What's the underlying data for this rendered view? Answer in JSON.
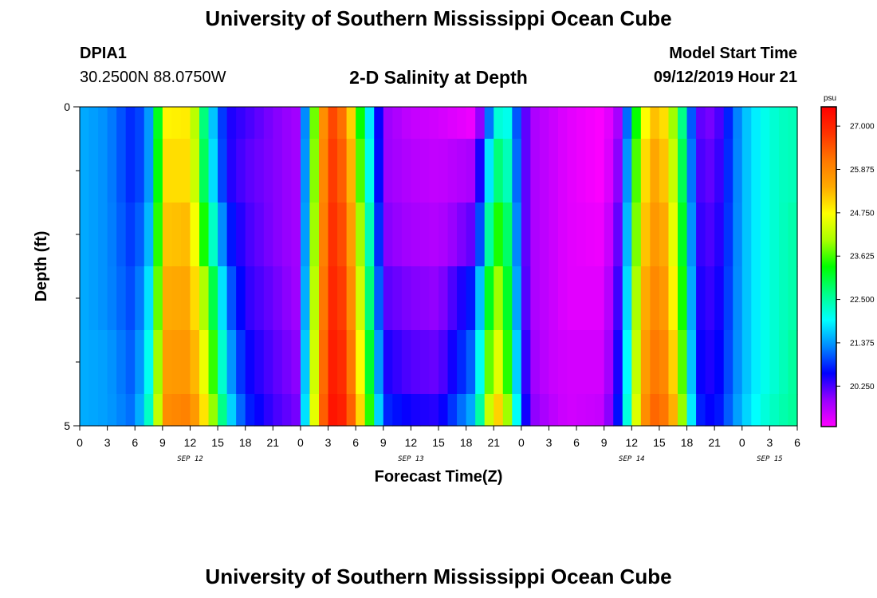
{
  "header": {
    "title": "University of Southern Mississippi Ocean Cube",
    "station_id": "DPIA1",
    "station_coords": "30.2500N 88.0750W",
    "plot_title": "2-D Salinity at Depth",
    "model_start_label": "Model Start Time",
    "model_start_value": "09/12/2019 Hour 21"
  },
  "footer": {
    "title": "University of Southern Mississippi Ocean Cube"
  },
  "colorbar": {
    "unit": "psu",
    "labels": [
      "27.000",
      "25.875",
      "24.750",
      "23.625",
      "22.500",
      "21.375",
      "20.250"
    ],
    "min": 19.2,
    "max": 27.5,
    "colors": [
      "#ff00ff",
      "#9900ff",
      "#0000ff",
      "#0088ff",
      "#00ffff",
      "#00ff88",
      "#00ff00",
      "#aaff00",
      "#ffff00",
      "#ffaa00",
      "#ff7700",
      "#ff3300",
      "#ff0000"
    ]
  },
  "chart_data": {
    "type": "heatmap",
    "title": "2-D Salinity at Depth",
    "xlabel": "Forecast Time(Z)",
    "ylabel": "Depth (ft)",
    "x_range_hours": [
      0,
      78
    ],
    "y_range": [
      0,
      5
    ],
    "x_tick_labels": [
      "0",
      "3",
      "6",
      "9",
      "12",
      "15",
      "18",
      "21",
      "0",
      "3",
      "6",
      "9",
      "12",
      "15",
      "18",
      "21",
      "0",
      "3",
      "6",
      "9",
      "12",
      "15",
      "18",
      "21",
      "0",
      "3",
      "6"
    ],
    "y_tick_labels": [
      "0",
      "5"
    ],
    "day_labels": [
      {
        "label": "SEP 12",
        "hour": 12
      },
      {
        "label": "SEP 13",
        "hour": 36
      },
      {
        "label": "SEP 14",
        "hour": 60
      },
      {
        "label": "SEP 15",
        "hour": 75
      }
    ],
    "depth_levels": [
      0,
      1,
      2,
      3,
      4,
      5
    ],
    "keyframes_hours": [
      0,
      3,
      6,
      8,
      9,
      12,
      14,
      16,
      18,
      21,
      24,
      25,
      27,
      29,
      31,
      33,
      36,
      39,
      43,
      45,
      46,
      48,
      49,
      51,
      53,
      57,
      59,
      61,
      63,
      65,
      67,
      69,
      72,
      74,
      76,
      78
    ],
    "salinity": [
      [
        21.5,
        21.3,
        20.7,
        21.6,
        24.8,
        24.9,
        22.0,
        20.5,
        20.3,
        20.0,
        19.8,
        22.8,
        26.8,
        26.0,
        22.5,
        19.9,
        19.6,
        19.5,
        19.3,
        21.8,
        22.6,
        20.5,
        19.8,
        19.6,
        19.4,
        19.2,
        20.0,
        24.5,
        25.5,
        23.5,
        20.2,
        20.0,
        21.5,
        22.0,
        22.3,
        22.4
      ],
      [
        21.5,
        21.3,
        20.7,
        21.6,
        25.0,
        25.0,
        22.2,
        20.5,
        20.2,
        20.0,
        19.8,
        22.9,
        26.9,
        26.2,
        22.8,
        19.9,
        19.7,
        19.6,
        19.8,
        22.5,
        23.0,
        20.5,
        19.8,
        19.6,
        19.4,
        19.2,
        20.2,
        24.8,
        25.7,
        23.8,
        20.3,
        20.1,
        21.5,
        22.0,
        22.3,
        22.4
      ],
      [
        21.5,
        21.3,
        20.8,
        21.8,
        25.2,
        25.3,
        22.8,
        20.8,
        20.3,
        20.0,
        19.8,
        23.0,
        27.0,
        26.4,
        23.2,
        20.0,
        19.8,
        19.7,
        20.2,
        23.3,
        23.6,
        20.5,
        19.8,
        19.6,
        19.4,
        19.3,
        20.4,
        25.0,
        25.9,
        24.1,
        20.4,
        20.2,
        21.5,
        22.0,
        22.3,
        22.5
      ],
      [
        21.5,
        21.3,
        20.9,
        22.1,
        25.4,
        25.5,
        23.6,
        21.2,
        20.4,
        20.1,
        19.8,
        23.2,
        27.1,
        26.6,
        23.6,
        20.2,
        20.0,
        19.9,
        20.8,
        24.0,
        24.0,
        20.6,
        19.8,
        19.6,
        19.4,
        19.4,
        20.6,
        25.2,
        26.1,
        24.4,
        20.5,
        20.3,
        21.5,
        22.0,
        22.3,
        22.5
      ],
      [
        21.5,
        21.4,
        21.0,
        22.4,
        25.6,
        25.7,
        24.2,
        21.6,
        20.6,
        20.2,
        19.9,
        23.4,
        27.2,
        26.8,
        24.0,
        20.5,
        20.2,
        20.1,
        21.2,
        24.6,
        24.4,
        20.8,
        19.9,
        19.6,
        19.5,
        19.5,
        20.8,
        25.4,
        26.3,
        24.7,
        20.6,
        20.4,
        21.5,
        22.0,
        22.3,
        22.6
      ],
      [
        21.5,
        21.4,
        21.1,
        22.7,
        25.8,
        26.0,
        24.6,
        22.0,
        20.8,
        20.3,
        20.0,
        23.6,
        27.3,
        27.0,
        24.4,
        20.8,
        20.5,
        20.4,
        21.6,
        25.2,
        25.0,
        21.0,
        20.0,
        19.7,
        19.5,
        19.6,
        21.0,
        25.6,
        26.5,
        25.0,
        20.8,
        20.5,
        21.6,
        22.1,
        22.4,
        22.6
      ]
    ]
  }
}
